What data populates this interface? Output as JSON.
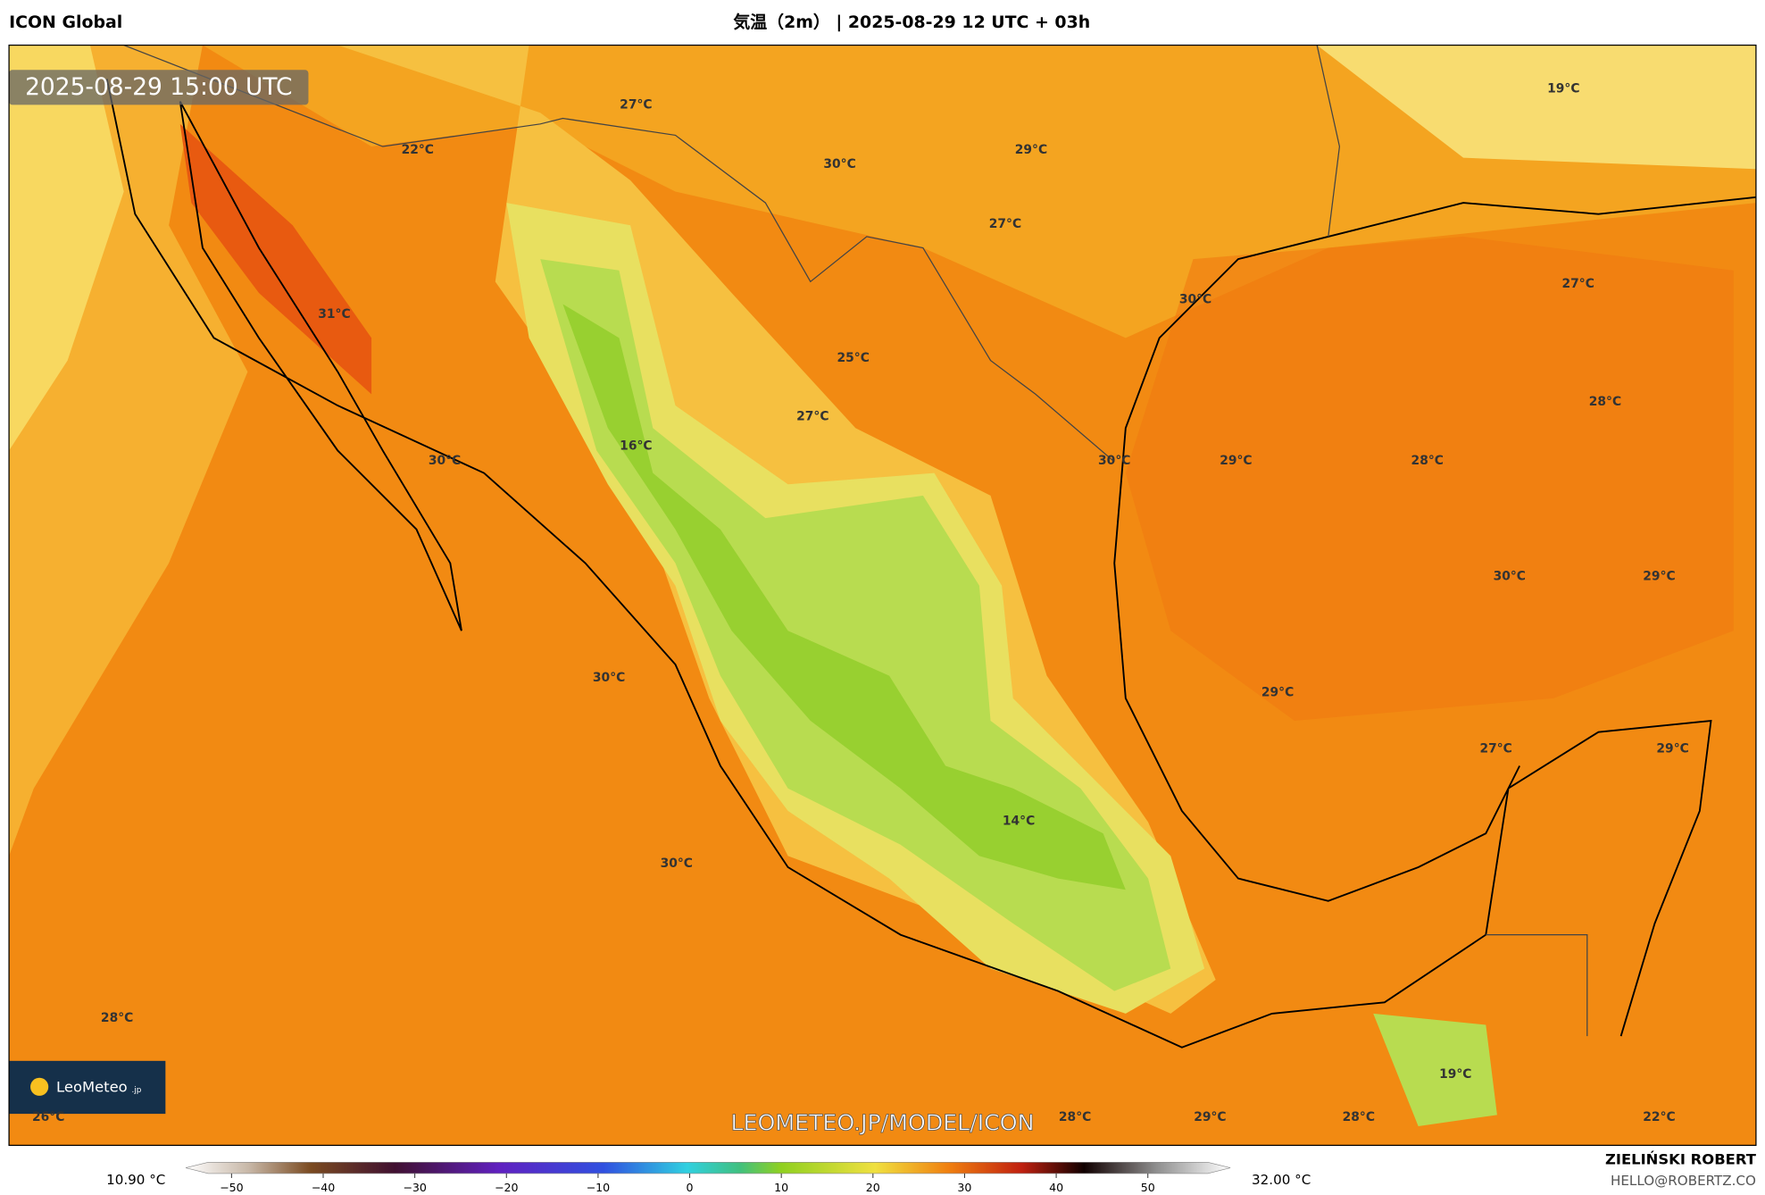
{
  "header": {
    "model": "ICON Global",
    "title": "気温（2m） | 2025-08-29 12 UTC + 03h"
  },
  "map": {
    "timestamp": "2025-08-29 15:00 UTC",
    "watermark": "LEOMETEO.JP/MODEL/ICON",
    "logo": "LeoMeteo",
    "logo_suffix": ".jp",
    "labels": [
      "27°C",
      "22°C",
      "30°C",
      "29°C",
      "27°C",
      "19°C",
      "31°C",
      "30°C",
      "27°C",
      "25°C",
      "27°C",
      "16°C",
      "30°C",
      "30°C",
      "29°C",
      "28°C",
      "28°C",
      "30°C",
      "29°C",
      "30°C",
      "29°C",
      "27°C",
      "29°C",
      "14°C",
      "30°C",
      "28°C",
      "19°C",
      "26°C",
      "28°C",
      "29°C",
      "28°C",
      "22°C"
    ]
  },
  "colorbar": {
    "min_label": "10.90 °C",
    "max_label": "32.00 °C",
    "range": [
      -55,
      59
    ],
    "ticks": [
      {
        "value": -50,
        "label": "−50"
      },
      {
        "value": -40,
        "label": "−40"
      },
      {
        "value": -30,
        "label": "−30"
      },
      {
        "value": -20,
        "label": "−20"
      },
      {
        "value": -10,
        "label": "−10"
      },
      0,
      10,
      20,
      30,
      40,
      50
    ]
  },
  "credits": {
    "author": "ZIELIŃSKI ROBERT",
    "email": "HELLO@ROBERTZ.CO"
  }
}
